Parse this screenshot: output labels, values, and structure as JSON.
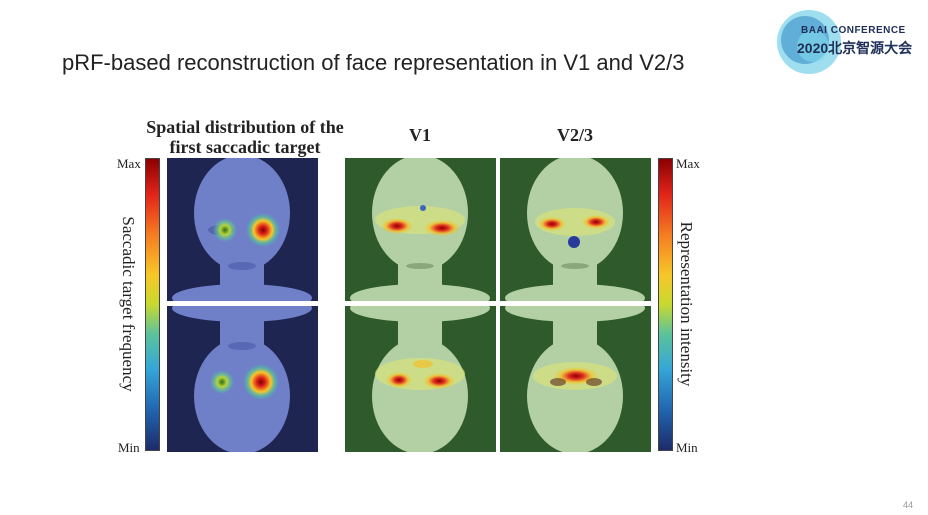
{
  "slide": {
    "title": "pRF-based reconstruction of face representation in V1 and V2/3",
    "page_number": "44"
  },
  "logo": {
    "line1": "BAAI CONFERENCE",
    "line2": "2020北京智源大会"
  },
  "figure": {
    "col_spatial": "Spatial distribution of the first saccadic target",
    "col_v1": "V1",
    "col_v23": "V2/3",
    "left_bar": {
      "max": "Max",
      "min": "Min",
      "label": "Saccadic target frequency"
    },
    "right_bar": {
      "max": "Max",
      "min": "Min",
      "label": "Representation intensity"
    }
  },
  "colors": {
    "spatial_bg": "#1d2550",
    "spatial_face": "#6f7fc8",
    "recon_bg": "#2f5a2b",
    "recon_face": "#b3d0a4",
    "hot": "#d81f1a"
  }
}
